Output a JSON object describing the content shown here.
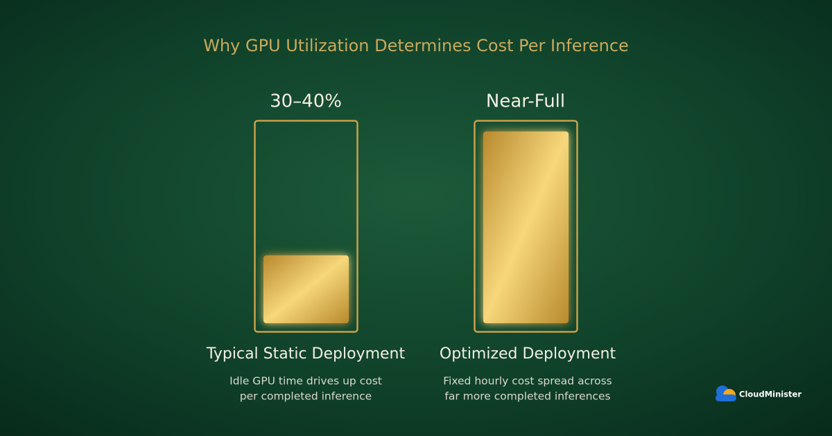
{
  "header": {
    "title": "Why GPU Utilization Determines Cost Per Inference"
  },
  "panels": [
    {
      "label": "30–40%",
      "heading": "Typical Static Deployment",
      "description": [
        "Idle GPU time drives up cost",
        "per completed inference"
      ]
    },
    {
      "label": "Near-Full",
      "heading": "Optimized Deployment",
      "description": [
        "Fixed hourly cost spread across",
        "far more completed inferences"
      ]
    }
  ],
  "brand": {
    "name": "CloudMinister"
  }
}
